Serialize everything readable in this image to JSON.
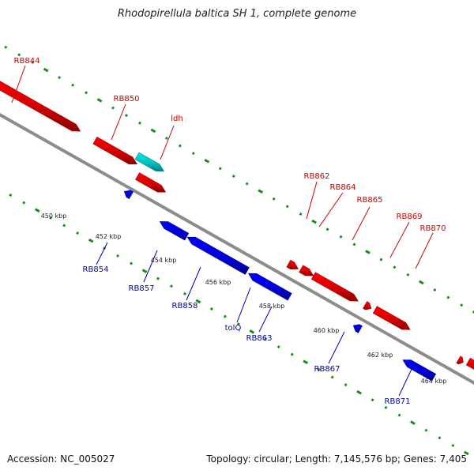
{
  "title": "Rhodopirellula baltica SH 1, complete genome",
  "footer": {
    "accession": "Accession: NC_005027",
    "summary": "Topology: circular; Length: 7,145,576 bp; Genes: 7,405"
  },
  "colors": {
    "forward_gene": "#ff0000",
    "reverse_gene": "#0000ff",
    "rna_gene": "#00e5e5",
    "backbone": "#8c8c8c",
    "tick_green": "#1a8c1a",
    "forward_label": "#cc0000",
    "reverse_label": "#0000aa"
  },
  "kbp_ticks": [
    "450 kbp",
    "452 kbp",
    "454 kbp",
    "456 kbp",
    "458 kbp",
    "460 kbp",
    "462 kbp",
    "464 kbp"
  ],
  "forward_labels": [
    "RB844",
    "RB850",
    "ldh",
    "RB862",
    "RB864",
    "RB865",
    "RB869",
    "RB870"
  ],
  "reverse_labels": [
    "RB854",
    "RB857",
    "RB858",
    "tolQ",
    "RB863",
    "RB867",
    "RB871"
  ]
}
